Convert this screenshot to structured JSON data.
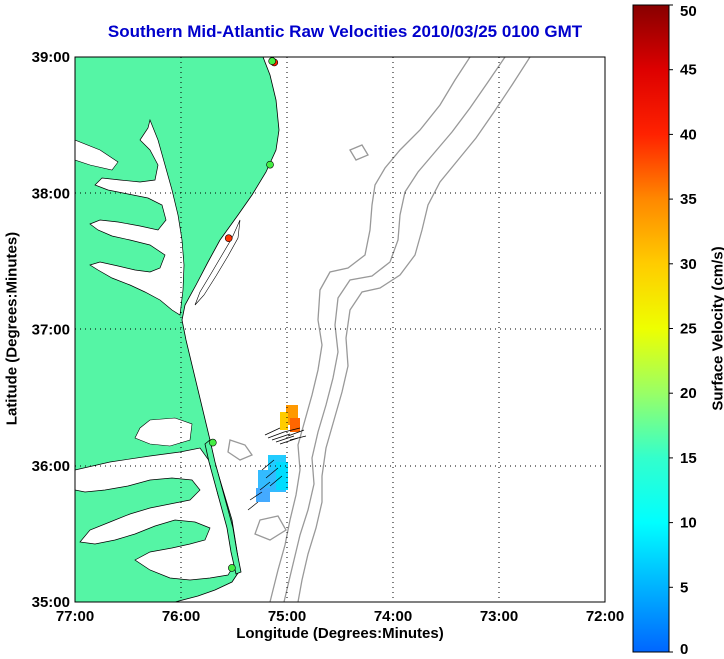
{
  "title": "Southern Mid-Atlantic Raw Velocities 2010/03/25 0100 GMT",
  "xlabel": "Longitude (Degrees:Minutes)",
  "ylabel": "Latitude (Degrees:Minutes)",
  "map": {
    "lon_range": [
      -77,
      -72
    ],
    "lat_range": [
      35,
      39
    ],
    "x_ticks": [
      {
        "value": -77,
        "label": "77:00"
      },
      {
        "value": -76,
        "label": "76:00"
      },
      {
        "value": -75,
        "label": "75:00"
      },
      {
        "value": -74,
        "label": "74:00"
      },
      {
        "value": -73,
        "label": "73:00"
      },
      {
        "value": -72,
        "label": "72:00"
      }
    ],
    "y_ticks": [
      {
        "value": 39,
        "label": "39:00"
      },
      {
        "value": 38,
        "label": "38:00"
      },
      {
        "value": 37,
        "label": "37:00"
      },
      {
        "value": 36,
        "label": "36:00"
      },
      {
        "value": 35,
        "label": "35:00"
      }
    ],
    "grid": "dotted",
    "land_color": "#55f5a5",
    "water_color": "#ffffff",
    "isobath_color": "#999999",
    "stations": [
      {
        "lon": -75.12,
        "lat": 38.96,
        "color": "#ff2200"
      },
      {
        "lon": -75.14,
        "lat": 38.97,
        "color": "#44ee44"
      },
      {
        "lon": -75.16,
        "lat": 38.21,
        "color": "#44ee44"
      },
      {
        "lon": -75.55,
        "lat": 37.67,
        "color": "#ff3300"
      },
      {
        "lon": -75.7,
        "lat": 36.17,
        "color": "#44ee44"
      },
      {
        "lon": -75.52,
        "lat": 35.25,
        "color": "#44ee44"
      }
    ]
  },
  "colorbar": {
    "label": "Surface Velocity (cm/s)",
    "min": 0,
    "max": 50,
    "ticks": [
      {
        "value": 0,
        "label": "0"
      },
      {
        "value": 5,
        "label": "5"
      },
      {
        "value": 10,
        "label": "10"
      },
      {
        "value": 15,
        "label": "15"
      },
      {
        "value": 20,
        "label": "20"
      },
      {
        "value": 25,
        "label": "25"
      },
      {
        "value": 30,
        "label": "30"
      },
      {
        "value": 35,
        "label": "35"
      },
      {
        "value": 40,
        "label": "40"
      },
      {
        "value": 45,
        "label": "45"
      },
      {
        "value": 50,
        "label": "50"
      }
    ]
  }
}
